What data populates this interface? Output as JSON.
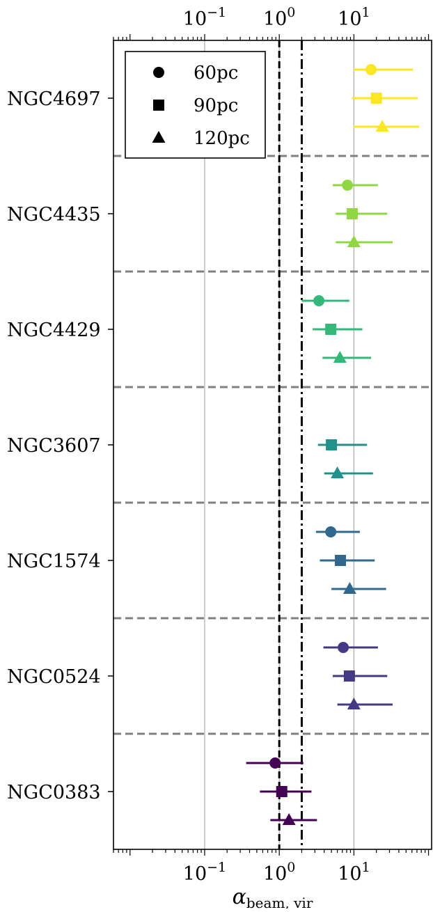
{
  "chart_data": {
    "type": "scatter",
    "title": "",
    "xlabel": "α",
    "xlabel_sub": "beam, vir",
    "x_scale": "log",
    "xlim": [
      0.006,
      110
    ],
    "x_ticks": [
      {
        "value": 0.1,
        "base": "10",
        "exp": "−1"
      },
      {
        "value": 1,
        "base": "10",
        "exp": "0"
      },
      {
        "value": 10,
        "base": "10",
        "exp": "1"
      }
    ],
    "grid": "vertical at 10^-1, 10^0, 10^1",
    "reference_lines": [
      {
        "x": 1,
        "style": "dashed",
        "color": "#000000"
      },
      {
        "x": 2,
        "style": "dash-dot",
        "color": "#000000"
      }
    ],
    "legend": {
      "placement": "top-left",
      "entries": [
        {
          "label": "60pc",
          "marker": "circle"
        },
        {
          "label": "90pc",
          "marker": "square"
        },
        {
          "label": "120pc",
          "marker": "triangle"
        }
      ]
    },
    "galaxies": [
      {
        "name": "NGC4697",
        "color": "#fde725",
        "points": [
          {
            "scale": "60pc",
            "value": 17,
            "low": 10,
            "high": 62
          },
          {
            "scale": "90pc",
            "value": 20,
            "low": 9.5,
            "high": 72
          },
          {
            "scale": "120pc",
            "value": 24,
            "low": 10,
            "high": 75
          }
        ]
      },
      {
        "name": "NGC4435",
        "color": "#90d743",
        "points": [
          {
            "scale": "60pc",
            "value": 8.2,
            "low": 5.2,
            "high": 21
          },
          {
            "scale": "90pc",
            "value": 9.5,
            "low": 5.7,
            "high": 28
          },
          {
            "scale": "120pc",
            "value": 10,
            "low": 5.7,
            "high": 33
          }
        ]
      },
      {
        "name": "NGC4429",
        "color": "#35b779",
        "points": [
          {
            "scale": "60pc",
            "value": 3.4,
            "low": 2.0,
            "high": 8.7
          },
          {
            "scale": "90pc",
            "value": 4.9,
            "low": 2.8,
            "high": 13
          },
          {
            "scale": "120pc",
            "value": 6.5,
            "low": 3.8,
            "high": 17
          }
        ]
      },
      {
        "name": "NGC3607",
        "color": "#21918c",
        "points": [
          {
            "scale": "90pc",
            "value": 5.0,
            "low": 3.3,
            "high": 15
          },
          {
            "scale": "120pc",
            "value": 6.0,
            "low": 4.0,
            "high": 18
          }
        ]
      },
      {
        "name": "NGC1574",
        "color": "#31688e",
        "points": [
          {
            "scale": "60pc",
            "value": 4.9,
            "low": 3.1,
            "high": 12
          },
          {
            "scale": "90pc",
            "value": 6.6,
            "low": 3.5,
            "high": 19
          },
          {
            "scale": "120pc",
            "value": 8.8,
            "low": 5.0,
            "high": 27
          }
        ]
      },
      {
        "name": "NGC0524",
        "color": "#443983",
        "points": [
          {
            "scale": "60pc",
            "value": 7.2,
            "low": 3.9,
            "high": 21
          },
          {
            "scale": "90pc",
            "value": 8.7,
            "low": 5.2,
            "high": 28
          },
          {
            "scale": "120pc",
            "value": 10,
            "low": 6.0,
            "high": 33
          }
        ]
      },
      {
        "name": "NGC0383",
        "color": "#440154",
        "points": [
          {
            "scale": "60pc",
            "value": 0.88,
            "low": 0.36,
            "high": 2.1
          },
          {
            "scale": "90pc",
            "value": 1.08,
            "low": 0.55,
            "high": 2.7
          },
          {
            "scale": "120pc",
            "value": 1.35,
            "low": 0.76,
            "high": 3.2
          }
        ]
      }
    ]
  }
}
